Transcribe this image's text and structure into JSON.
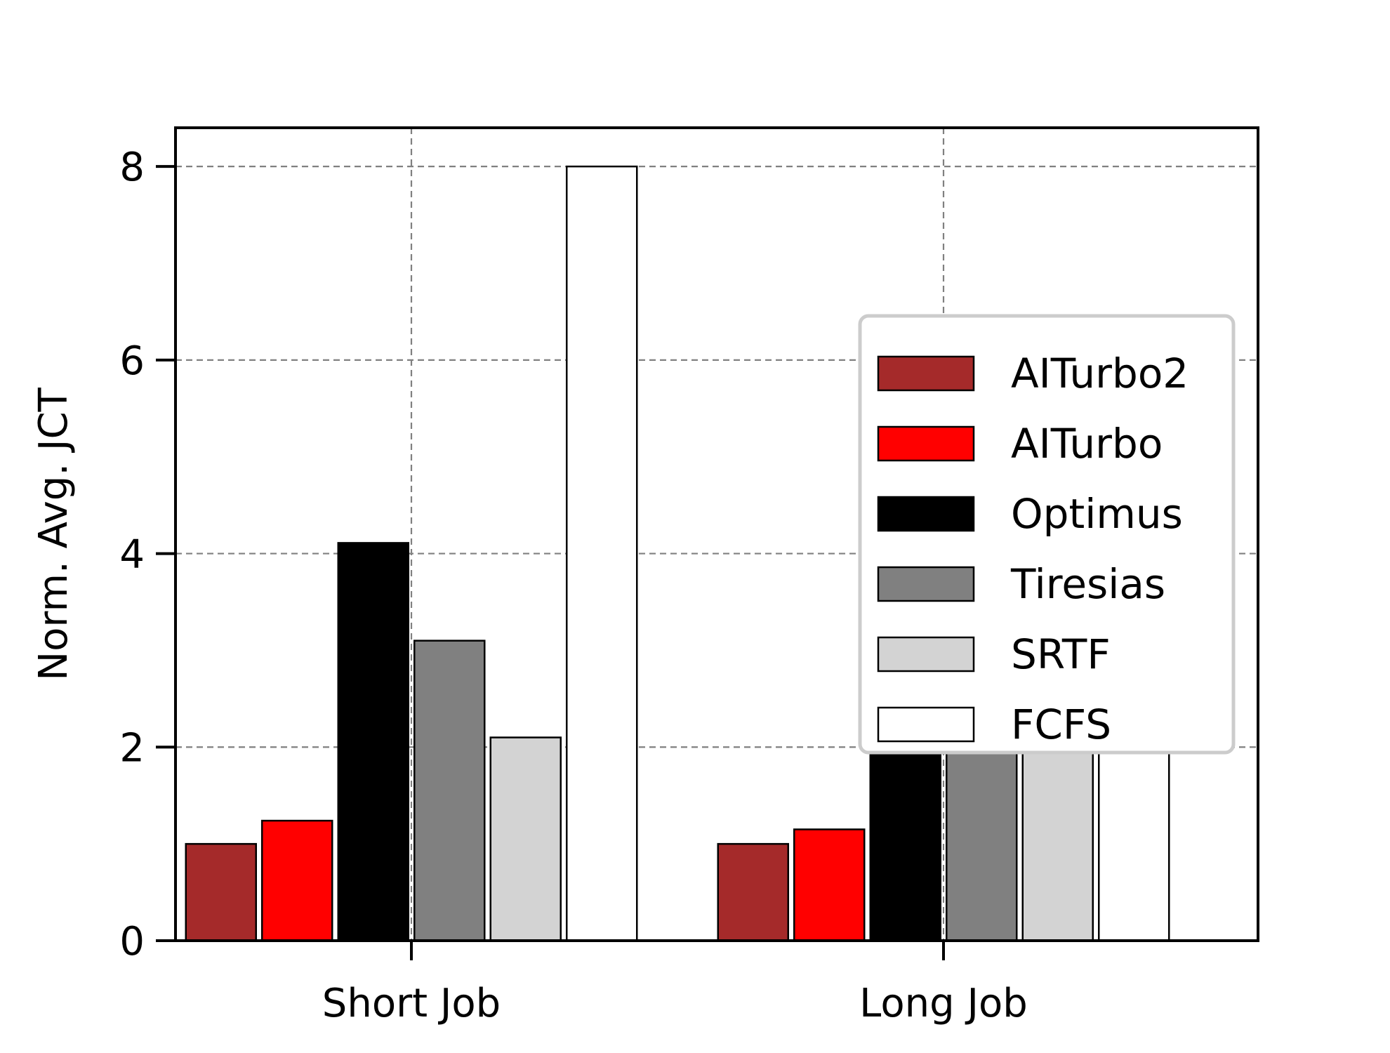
{
  "chart_data": {
    "type": "bar",
    "title": "",
    "xlabel": "",
    "ylabel": "Norm. Avg. JCT",
    "categories": [
      "Short Job",
      "Long Job"
    ],
    "ylim": [
      0,
      8.4
    ],
    "yticks": [
      0,
      2,
      4,
      6,
      8
    ],
    "grid": true,
    "legend_position": "center-right",
    "series": [
      {
        "name": "AITurbo2",
        "color": "#a52a2a",
        "values": [
          1.0,
          1.0
        ]
      },
      {
        "name": "AITurbo",
        "color": "#ff0000",
        "values": [
          1.24,
          1.15
        ]
      },
      {
        "name": "Optimus",
        "color": "#000000",
        "values": [
          4.11,
          2.05
        ]
      },
      {
        "name": "Tiresias",
        "color": "#808080",
        "values": [
          3.1,
          2.05
        ]
      },
      {
        "name": "SRTF",
        "color": "#d3d3d3",
        "values": [
          2.1,
          2.05
        ]
      },
      {
        "name": "FCFS",
        "color": "#ffffff",
        "values": [
          8.0,
          2.05
        ]
      }
    ]
  }
}
